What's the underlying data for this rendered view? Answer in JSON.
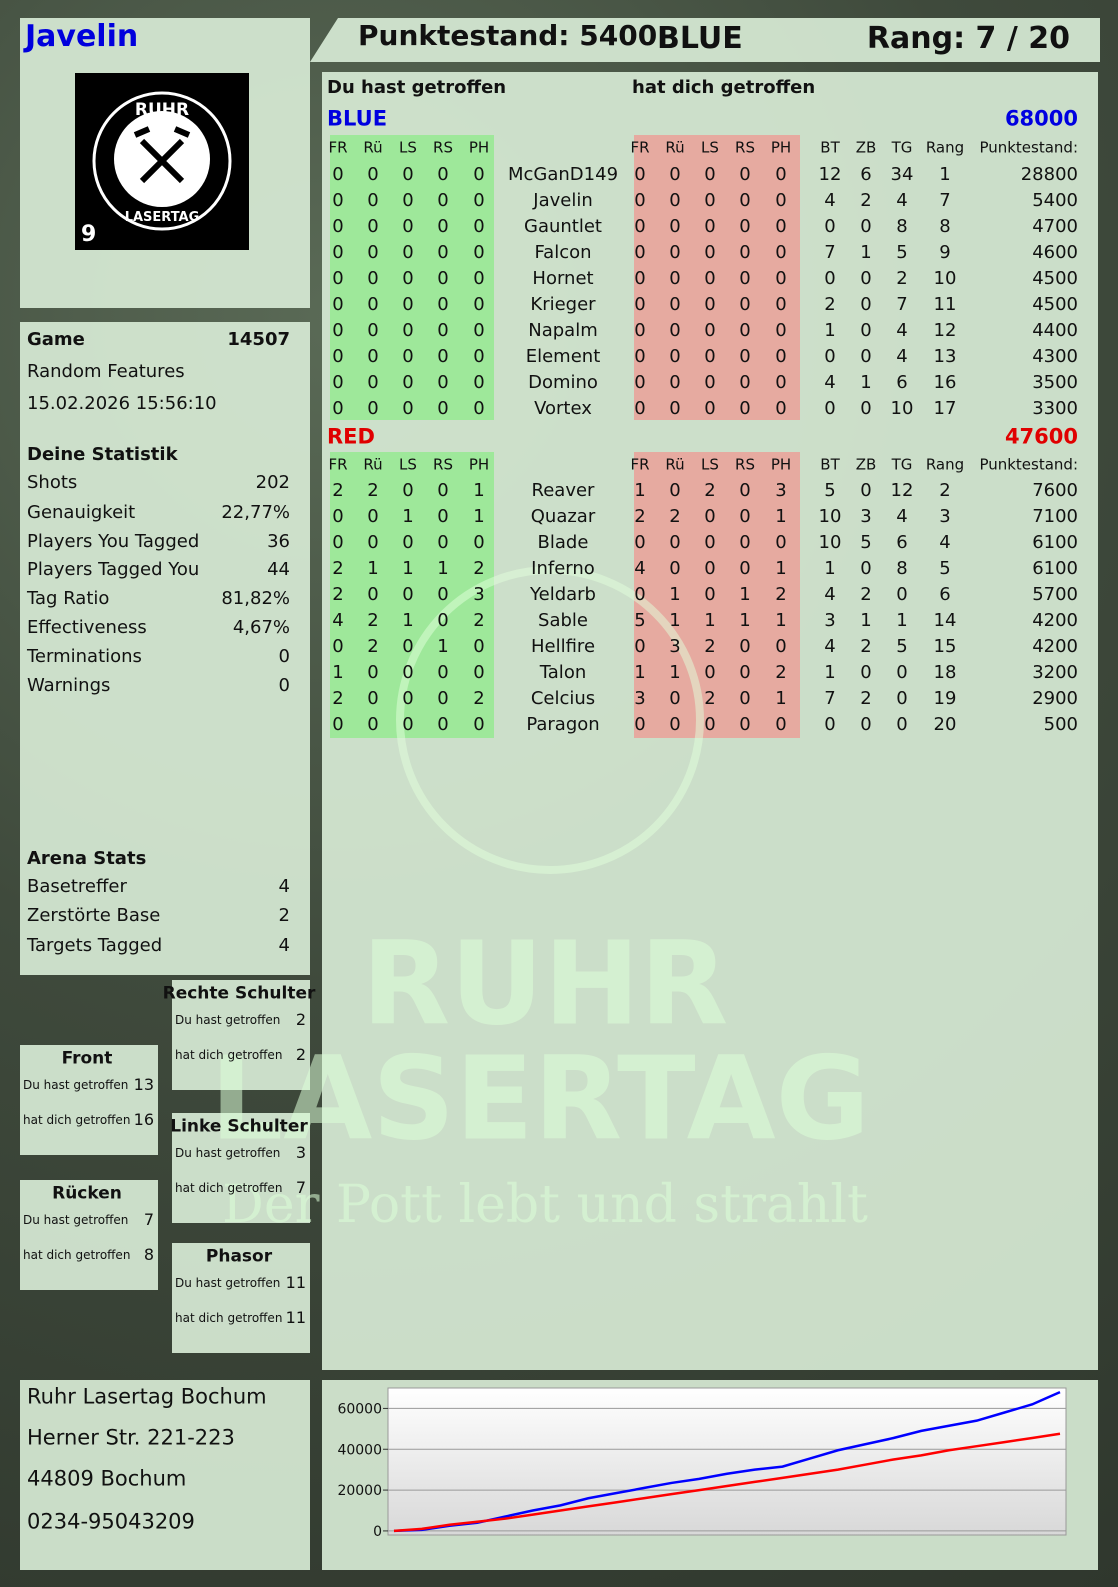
{
  "header": {
    "player": "Javelin",
    "score": "Punktestand: 5400",
    "team": "BLUE",
    "rank": "Rang: 7 / 20"
  },
  "logo": {
    "top": "RUHR",
    "bottom": "LASERTAG",
    "number": "9"
  },
  "game": {
    "label": "Game",
    "id": 14507,
    "mode": "Random Features",
    "datetime": "15.02.2026 15:56:10"
  },
  "stats": {
    "title": "Deine Statistik",
    "rows": [
      [
        "Shots",
        202
      ],
      [
        "Genauigkeit",
        "22,77%"
      ],
      [
        "Players You Tagged",
        36
      ],
      [
        "Players Tagged You",
        44
      ],
      [
        "Tag Ratio",
        "81,82%"
      ],
      [
        "Effectiveness",
        "4,67%"
      ],
      [
        "Terminations",
        0
      ],
      [
        "Warnings",
        0
      ]
    ]
  },
  "arena": {
    "title": "Arena Stats",
    "rows": [
      [
        "Basetreffer",
        4
      ],
      [
        "Zerstörte Base",
        2
      ],
      [
        "Targets Tagged",
        4
      ]
    ]
  },
  "zones": [
    {
      "title": "Rechte Schulter",
      "rows": [
        [
          "Du hast getroffen",
          2
        ],
        [
          "hat dich getroffen",
          2
        ]
      ]
    },
    {
      "title": "Front",
      "rows": [
        [
          "Du hast getroffen",
          13
        ],
        [
          "hat dich getroffen",
          16
        ]
      ]
    },
    {
      "title": "Linke Schulter",
      "rows": [
        [
          "Du hast getroffen",
          3
        ],
        [
          "hat dich getroffen",
          7
        ]
      ]
    },
    {
      "title": "Rücken",
      "rows": [
        [
          "Du hast getroffen",
          7
        ],
        [
          "hat dich getroffen",
          8
        ]
      ]
    },
    {
      "title": "Phasor",
      "rows": [
        [
          "Du hast getroffen",
          11
        ],
        [
          "hat dich getroffen",
          11
        ]
      ]
    }
  ],
  "address": [
    "Ruhr Lasertag Bochum",
    "Herner Str. 221-223",
    "44809 Bochum",
    "0234-95043209"
  ],
  "watermark": {
    "line1": "RUHR",
    "line2": "LASERTAG",
    "slogan": "Der Pott lebt und strahlt"
  },
  "scoreboard": {
    "you_hit": "Du hast getroffen",
    "hit_you": "hat dich getroffen",
    "hit_cols": [
      "FR",
      "Rü",
      "LS",
      "RS",
      "PH"
    ],
    "stat_cols": [
      "BT",
      "ZB",
      "TG",
      "Rang",
      "Punktestand:"
    ],
    "teams": [
      {
        "name": "BLUE",
        "color": "#0000e0",
        "total": 68000,
        "players": [
          {
            "name": "McGanD149",
            "hit": [
              0,
              0,
              0,
              0,
              0
            ],
            "got": [
              0,
              0,
              0,
              0,
              0
            ],
            "stats": [
              12,
              6,
              34,
              1,
              28800
            ]
          },
          {
            "name": "Javelin",
            "hit": [
              0,
              0,
              0,
              0,
              0
            ],
            "got": [
              0,
              0,
              0,
              0,
              0
            ],
            "stats": [
              4,
              2,
              4,
              7,
              5400
            ]
          },
          {
            "name": "Gauntlet",
            "hit": [
              0,
              0,
              0,
              0,
              0
            ],
            "got": [
              0,
              0,
              0,
              0,
              0
            ],
            "stats": [
              0,
              0,
              8,
              8,
              4700
            ]
          },
          {
            "name": "Falcon",
            "hit": [
              0,
              0,
              0,
              0,
              0
            ],
            "got": [
              0,
              0,
              0,
              0,
              0
            ],
            "stats": [
              7,
              1,
              5,
              9,
              4600
            ]
          },
          {
            "name": "Hornet",
            "hit": [
              0,
              0,
              0,
              0,
              0
            ],
            "got": [
              0,
              0,
              0,
              0,
              0
            ],
            "stats": [
              0,
              0,
              2,
              10,
              4500
            ]
          },
          {
            "name": "Krieger",
            "hit": [
              0,
              0,
              0,
              0,
              0
            ],
            "got": [
              0,
              0,
              0,
              0,
              0
            ],
            "stats": [
              2,
              0,
              7,
              11,
              4500
            ]
          },
          {
            "name": "Napalm",
            "hit": [
              0,
              0,
              0,
              0,
              0
            ],
            "got": [
              0,
              0,
              0,
              0,
              0
            ],
            "stats": [
              1,
              0,
              4,
              12,
              4400
            ]
          },
          {
            "name": "Element",
            "hit": [
              0,
              0,
              0,
              0,
              0
            ],
            "got": [
              0,
              0,
              0,
              0,
              0
            ],
            "stats": [
              0,
              0,
              4,
              13,
              4300
            ]
          },
          {
            "name": "Domino",
            "hit": [
              0,
              0,
              0,
              0,
              0
            ],
            "got": [
              0,
              0,
              0,
              0,
              0
            ],
            "stats": [
              4,
              1,
              6,
              16,
              3500
            ]
          },
          {
            "name": "Vortex",
            "hit": [
              0,
              0,
              0,
              0,
              0
            ],
            "got": [
              0,
              0,
              0,
              0,
              0
            ],
            "stats": [
              0,
              0,
              10,
              17,
              3300
            ]
          }
        ]
      },
      {
        "name": "RED",
        "color": "#e00000",
        "total": 47600,
        "players": [
          {
            "name": "Reaver",
            "hit": [
              2,
              2,
              0,
              0,
              1
            ],
            "got": [
              1,
              0,
              2,
              0,
              3
            ],
            "stats": [
              5,
              0,
              12,
              2,
              7600
            ]
          },
          {
            "name": "Quazar",
            "hit": [
              0,
              0,
              1,
              0,
              1
            ],
            "got": [
              2,
              2,
              0,
              0,
              1
            ],
            "stats": [
              10,
              3,
              4,
              3,
              7100
            ]
          },
          {
            "name": "Blade",
            "hit": [
              0,
              0,
              0,
              0,
              0
            ],
            "got": [
              0,
              0,
              0,
              0,
              0
            ],
            "stats": [
              10,
              5,
              6,
              4,
              6100
            ]
          },
          {
            "name": "Inferno",
            "hit": [
              2,
              1,
              1,
              1,
              2
            ],
            "got": [
              4,
              0,
              0,
              0,
              1
            ],
            "stats": [
              1,
              0,
              8,
              5,
              6100
            ]
          },
          {
            "name": "Yeldarb",
            "hit": [
              2,
              0,
              0,
              0,
              3
            ],
            "got": [
              0,
              1,
              0,
              1,
              2
            ],
            "stats": [
              4,
              2,
              0,
              6,
              5700
            ]
          },
          {
            "name": "Sable",
            "hit": [
              4,
              2,
              1,
              0,
              2
            ],
            "got": [
              5,
              1,
              1,
              1,
              1
            ],
            "stats": [
              3,
              1,
              1,
              14,
              4200
            ]
          },
          {
            "name": "Hellfire",
            "hit": [
              0,
              2,
              0,
              1,
              0
            ],
            "got": [
              0,
              3,
              2,
              0,
              0
            ],
            "stats": [
              4,
              2,
              5,
              15,
              4200
            ]
          },
          {
            "name": "Talon",
            "hit": [
              1,
              0,
              0,
              0,
              0
            ],
            "got": [
              1,
              1,
              0,
              0,
              2
            ],
            "stats": [
              1,
              0,
              0,
              18,
              3200
            ]
          },
          {
            "name": "Celcius",
            "hit": [
              2,
              0,
              0,
              0,
              2
            ],
            "got": [
              3,
              0,
              2,
              0,
              1
            ],
            "stats": [
              7,
              2,
              0,
              19,
              2900
            ]
          },
          {
            "name": "Paragon",
            "hit": [
              0,
              0,
              0,
              0,
              0
            ],
            "got": [
              0,
              0,
              0,
              0,
              0
            ],
            "stats": [
              0,
              0,
              0,
              20,
              500
            ]
          }
        ]
      }
    ]
  },
  "chart_data": {
    "type": "line",
    "ylim": [
      -2000,
      70000
    ],
    "yticks": [
      0,
      20000,
      40000,
      60000
    ],
    "grid": true,
    "series": [
      {
        "color": "#0000ff",
        "values": [
          0,
          500,
          2500,
          4000,
          7000,
          10000,
          12500,
          16000,
          18500,
          21000,
          23500,
          25500,
          28000,
          30000,
          31500,
          35500,
          39500,
          42500,
          45500,
          49000,
          51500,
          54000,
          58000,
          62000,
          68000
        ]
      },
      {
        "color": "#ff0000",
        "values": [
          0,
          1000,
          3000,
          4500,
          6000,
          8000,
          10000,
          12000,
          14000,
          16000,
          18000,
          20000,
          22000,
          24000,
          26000,
          28000,
          30000,
          32500,
          35000,
          37000,
          39500,
          41500,
          43500,
          45500,
          47600
        ]
      }
    ]
  }
}
